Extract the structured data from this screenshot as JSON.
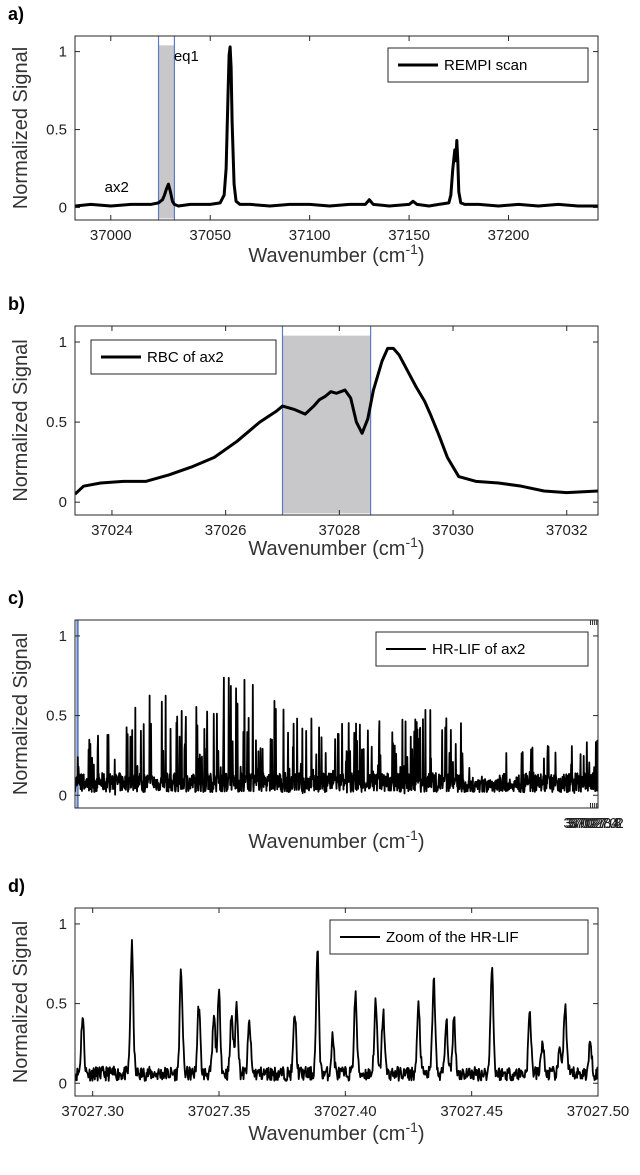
{
  "colors": {
    "line": "#000000",
    "shade": "#c8c8ca",
    "shade_edge": "#5b7cc4",
    "axis": "#262626"
  },
  "chart_data": [
    {
      "id": "a",
      "panel_label": "a)",
      "type": "line",
      "xlabel": "Wavenumber (cm",
      "xlabel_sup": "-1",
      "xlabel_tail": ")",
      "ylabel": "Normalized Signal",
      "xlim": [
        36982,
        37245
      ],
      "ylim": [
        -0.08,
        1.1
      ],
      "xticks": [
        37000,
        37050,
        37100,
        37150,
        37200
      ],
      "xtick_labels": [
        "37000",
        "37050",
        "37100",
        "37150",
        "37200"
      ],
      "yticks": [
        0,
        0.5,
        1
      ],
      "ytick_labels": [
        "0",
        "0.5",
        "1"
      ],
      "shade": [
        37024,
        37032
      ],
      "legend": "REMPI scan",
      "legend_position": "top-right",
      "annotations": [
        {
          "text": "ax2",
          "x": 37003,
          "y": 0.1
        },
        {
          "text": "eq1",
          "x": 37038,
          "y": 0.94
        }
      ],
      "series": [
        {
          "x": [
            36982,
            36990,
            37000,
            37010,
            37020,
            37024,
            37026,
            37027,
            37028,
            37029,
            37030,
            37031,
            37032,
            37034,
            37040,
            37050,
            37055,
            37057,
            37058,
            37059,
            37059.5,
            37060,
            37060.5,
            37061,
            37062,
            37063,
            37065,
            37070,
            37080,
            37090,
            37100,
            37110,
            37120,
            37128,
            37130,
            37132,
            37140,
            37150,
            37152,
            37154,
            37160,
            37165,
            37170,
            37171,
            37172,
            37173,
            37173.5,
            37174,
            37174.5,
            37175,
            37176,
            37178,
            37185,
            37195,
            37205,
            37215,
            37225,
            37235,
            37245
          ],
          "y": [
            0.01,
            0.02,
            0.01,
            0.02,
            0.02,
            0.03,
            0.05,
            0.08,
            0.12,
            0.15,
            0.1,
            0.04,
            0.02,
            0.01,
            0.02,
            0.02,
            0.03,
            0.08,
            0.25,
            0.75,
            0.98,
            1.03,
            0.9,
            0.55,
            0.15,
            0.04,
            0.02,
            0.02,
            0.01,
            0.02,
            0.02,
            0.01,
            0.02,
            0.02,
            0.05,
            0.02,
            0.01,
            0.02,
            0.04,
            0.02,
            0.01,
            0.02,
            0.03,
            0.08,
            0.25,
            0.37,
            0.3,
            0.43,
            0.3,
            0.1,
            0.03,
            0.02,
            0.02,
            0.01,
            0.02,
            0.01,
            0.02,
            0.01,
            0.01
          ]
        }
      ]
    },
    {
      "id": "b",
      "panel_label": "b)",
      "type": "line",
      "xlabel": "Wavenumber (cm",
      "xlabel_sup": "-1",
      "xlabel_tail": ")",
      "ylabel": "Normalized Signal",
      "xlim": [
        37023.35,
        37032.55
      ],
      "ylim": [
        -0.08,
        1.1
      ],
      "xticks": [
        37024,
        37026,
        37028,
        37030,
        37032
      ],
      "xtick_labels": [
        "37024",
        "37026",
        "37028",
        "37030",
        "37032"
      ],
      "yticks": [
        0,
        0.5,
        1
      ],
      "ytick_labels": [
        "0",
        "0.5",
        "1"
      ],
      "shade": [
        37027.0,
        37028.55
      ],
      "legend": "RBC of ax2",
      "legend_position": "top-left",
      "series": [
        {
          "x": [
            37023.35,
            37023.5,
            37023.8,
            37024.2,
            37024.6,
            37025.0,
            37025.4,
            37025.8,
            37026.2,
            37026.6,
            37026.9,
            37027.0,
            37027.2,
            37027.4,
            37027.55,
            37027.65,
            37027.75,
            37027.85,
            37027.95,
            37028.1,
            37028.2,
            37028.3,
            37028.4,
            37028.5,
            37028.6,
            37028.75,
            37028.85,
            37028.95,
            37029.05,
            37029.2,
            37029.35,
            37029.5,
            37029.6,
            37029.75,
            37029.9,
            37030.1,
            37030.4,
            37030.8,
            37031.2,
            37031.6,
            37032.0,
            37032.55
          ],
          "y": [
            0.05,
            0.1,
            0.12,
            0.13,
            0.13,
            0.17,
            0.22,
            0.28,
            0.38,
            0.5,
            0.57,
            0.6,
            0.58,
            0.55,
            0.6,
            0.64,
            0.66,
            0.69,
            0.68,
            0.7,
            0.65,
            0.5,
            0.43,
            0.52,
            0.7,
            0.88,
            0.96,
            0.96,
            0.92,
            0.82,
            0.72,
            0.63,
            0.55,
            0.42,
            0.28,
            0.16,
            0.13,
            0.12,
            0.1,
            0.07,
            0.06,
            0.07
          ]
        }
      ]
    },
    {
      "id": "c",
      "panel_label": "c)",
      "type": "line",
      "xlabel": "Wavenumber (cm",
      "xlabel_sup": "-1",
      "xlabel_tail": ")",
      "ylabel": "Normalized Signal",
      "xlim": [
        36926.9,
        37028.45
      ],
      "ylim": [
        -0.08,
        1.1
      ],
      "x_display_offset": 100,
      "xticks": [
        37027.0,
        37027.4,
        37027.8,
        37028.2
      ],
      "xtick_labels": [
        "37027.0",
        "37027.4",
        "37027.8",
        "37028.2"
      ],
      "yticks": [
        0,
        0.5,
        1
      ],
      "ytick_labels": [
        "0",
        "0.5",
        "1"
      ],
      "shade": [
        37027.3,
        37027.5
      ],
      "legend": "HR-LIF of ax2",
      "legend_position": "top-right",
      "noise_seed": 7,
      "noise_range": [
        36926.9,
        37028.45
      ],
      "series": [
        {
          "x": [
            37026.95,
            37027.05,
            37027.1,
            37027.15,
            37027.2,
            37027.3,
            37027.33,
            37027.36,
            37027.39,
            37027.42,
            37027.45,
            37027.5,
            37027.55,
            37027.6,
            37027.7,
            37027.8,
            37027.9,
            37028.0,
            37028.05,
            37028.1,
            37028.2,
            37028.3,
            37028.4
          ],
          "y": [
            0.38,
            0.62,
            0.55,
            1.0,
            0.6,
            0.57,
            0.82,
            0.8,
            0.78,
            0.72,
            0.68,
            0.6,
            0.48,
            0.55,
            0.45,
            0.5,
            0.58,
            0.5,
            0.45,
            0.35,
            0.3,
            0.32,
            0.38
          ]
        }
      ]
    },
    {
      "id": "d",
      "panel_label": "d)",
      "type": "line",
      "xlabel": "Wavenumber (cm",
      "xlabel_sup": "-1",
      "xlabel_tail": ")",
      "ylabel": "Normalized Signal",
      "xlim": [
        37027.293,
        37027.5
      ],
      "ylim": [
        -0.08,
        1.1
      ],
      "xticks": [
        37027.3,
        37027.35,
        37027.4,
        37027.45,
        37027.5
      ],
      "xtick_labels": [
        "37027.30",
        "37027.35",
        "37027.40",
        "37027.45",
        "37027.50"
      ],
      "yticks": [
        0,
        0.5,
        1
      ],
      "ytick_labels": [
        "0",
        "0.5",
        "1"
      ],
      "legend": "Zoom of the HR-LIF",
      "legend_position": "top-right",
      "peaks": [
        [
          37027.296,
          0.36
        ],
        [
          37027.3155,
          0.8
        ],
        [
          37027.335,
          0.64
        ],
        [
          37027.342,
          0.43
        ],
        [
          37027.348,
          0.35
        ],
        [
          37027.35,
          0.49
        ],
        [
          37027.355,
          0.37
        ],
        [
          37027.357,
          0.44
        ],
        [
          37027.362,
          0.32
        ],
        [
          37027.38,
          0.37
        ],
        [
          37027.389,
          0.75
        ],
        [
          37027.395,
          0.23
        ],
        [
          37027.404,
          0.49
        ],
        [
          37027.412,
          0.44
        ],
        [
          37027.415,
          0.38
        ],
        [
          37027.429,
          0.43
        ],
        [
          37027.435,
          0.59
        ],
        [
          37027.44,
          0.32
        ],
        [
          37027.443,
          0.35
        ],
        [
          37027.458,
          0.68
        ],
        [
          37027.473,
          0.38
        ],
        [
          37027.478,
          0.2
        ],
        [
          37027.485,
          0.16
        ],
        [
          37027.487,
          0.42
        ],
        [
          37027.497,
          0.2
        ]
      ]
    }
  ]
}
